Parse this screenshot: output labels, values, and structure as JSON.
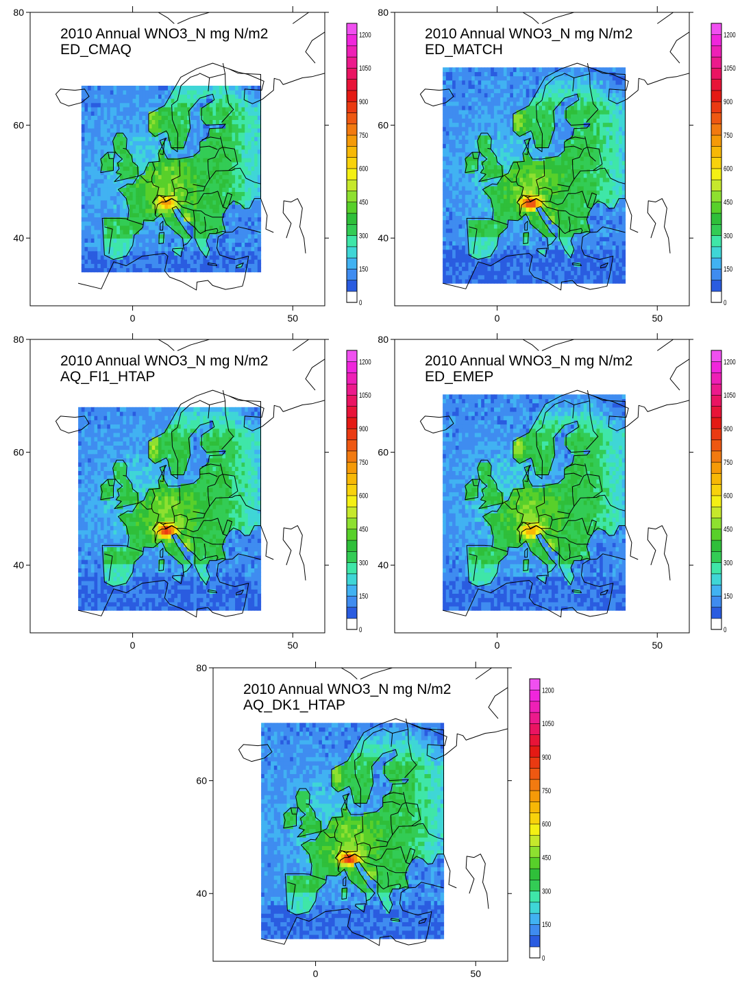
{
  "colorbar": {
    "ticks": [
      "0",
      "150",
      "300",
      "450",
      "600",
      "750",
      "900",
      "1050",
      "1200"
    ],
    "colors": [
      "#ffffff",
      "#2a5ce0",
      "#3f8cf0",
      "#41b2f2",
      "#3fd6d6",
      "#3fe6a8",
      "#33cc55",
      "#2fbf3a",
      "#58d02a",
      "#8ee030",
      "#c6e82c",
      "#f4f014",
      "#f8d20c",
      "#f7b806",
      "#f59a08",
      "#f27a10",
      "#ee5812",
      "#ea3a12",
      "#e41a14",
      "#e81438",
      "#ea1462",
      "#ec1a8c",
      "#ee20b6",
      "#f026dc",
      "#f050f0"
    ]
  },
  "chart_data": [
    {
      "type": "heatmap",
      "title": "2010 Annual WNO3_N mg N/m2",
      "model": "ED_CMAQ",
      "units": "mg N/m2",
      "xticks": [
        "0",
        "50"
      ],
      "yticks": [
        "40",
        "60",
        "80"
      ],
      "xlim": [
        -32,
        60
      ],
      "ylim": [
        28,
        80
      ],
      "domain_lon": [
        -16,
        40
      ],
      "domain_lat": [
        34,
        67
      ],
      "colorbar_range": [
        0,
        1250
      ]
    },
    {
      "type": "heatmap",
      "title": "2010 Annual WNO3_N mg N/m2",
      "model": "ED_MATCH",
      "units": "mg N/m2",
      "xticks": [
        "0",
        "50"
      ],
      "yticks": [
        "40",
        "60",
        "80"
      ],
      "xlim": [
        -32,
        60
      ],
      "ylim": [
        28,
        80
      ],
      "domain_lon": [
        -17,
        40
      ],
      "domain_lat": [
        32,
        70
      ],
      "colorbar_range": [
        0,
        1250
      ]
    },
    {
      "type": "heatmap",
      "title": "2010 Annual WNO3_N mg N/m2",
      "model": "AQ_FI1_HTAP",
      "units": "mg N/m2",
      "xticks": [
        "0",
        "50"
      ],
      "yticks": [
        "40",
        "60",
        "80"
      ],
      "xlim": [
        -32,
        60
      ],
      "ylim": [
        28,
        80
      ],
      "domain_lon": [
        -17,
        40
      ],
      "domain_lat": [
        32,
        68
      ],
      "colorbar_range": [
        0,
        1250
      ]
    },
    {
      "type": "heatmap",
      "title": "2010 Annual WNO3_N mg N/m2",
      "model": "ED_EMEP",
      "units": "mg N/m2",
      "xticks": [
        "0",
        "50"
      ],
      "yticks": [
        "40",
        "60",
        "80"
      ],
      "xlim": [
        -32,
        60
      ],
      "ylim": [
        28,
        80
      ],
      "domain_lon": [
        -17,
        40
      ],
      "domain_lat": [
        32,
        70
      ],
      "colorbar_range": [
        0,
        1250
      ]
    },
    {
      "type": "heatmap",
      "title": "2010 Annual WNO3_N mg N/m2",
      "model": "AQ_DK1_HTAP",
      "units": "mg N/m2",
      "xticks": [
        "0",
        "50"
      ],
      "yticks": [
        "40",
        "60",
        "80"
      ],
      "xlim": [
        -32,
        60
      ],
      "ylim": [
        28,
        80
      ],
      "domain_lon": [
        -17,
        40
      ],
      "domain_lat": [
        32,
        70
      ],
      "colorbar_range": [
        0,
        1250
      ]
    }
  ]
}
